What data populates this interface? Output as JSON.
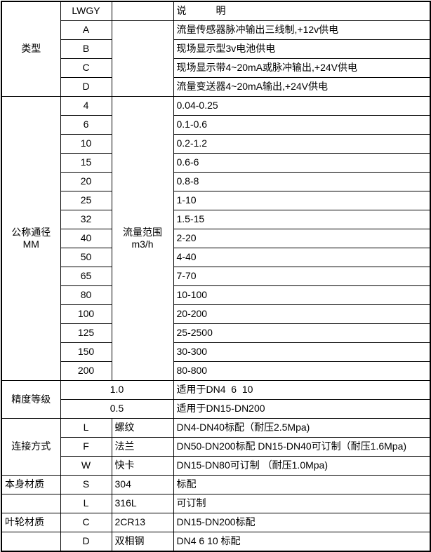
{
  "table": {
    "header": {
      "code": "LWGY",
      "desc": "说　　　明"
    },
    "sections": {
      "type": {
        "label": "类型",
        "rows": [
          {
            "code": "A",
            "desc": "流量传感器脉冲输出三线制,+12v供电"
          },
          {
            "code": "B",
            "desc": "现场显示型3v电池供电"
          },
          {
            "code": "C",
            "desc": "现场显示带4~20mA或脉冲输出,+24V供电"
          },
          {
            "code": "D",
            "desc": "流量变送器4~20mA输出,+24V供电"
          }
        ]
      },
      "diameter": {
        "label": "公称通径\nMM",
        "range_label": "流量范围\nm3/h",
        "rows": [
          {
            "dn": "4",
            "range": "0.04-0.25"
          },
          {
            "dn": "6",
            "range": "0.1-0.6"
          },
          {
            "dn": "10",
            "range": "0.2-1.2"
          },
          {
            "dn": "15",
            "range": "0.6-6"
          },
          {
            "dn": "20",
            "range": "0.8-8"
          },
          {
            "dn": "25",
            "range": "1-10"
          },
          {
            "dn": "32",
            "range": "1.5-15"
          },
          {
            "dn": "40",
            "range": "2-20"
          },
          {
            "dn": "50",
            "range": "4-40"
          },
          {
            "dn": "65",
            "range": "7-70"
          },
          {
            "dn": "80",
            "range": "10-100"
          },
          {
            "dn": "100",
            "range": "20-200"
          },
          {
            "dn": "125",
            "range": "25-2500"
          },
          {
            "dn": "150",
            "range": "30-300"
          },
          {
            "dn": "200",
            "range": "80-800"
          }
        ]
      },
      "accuracy": {
        "label": "精度等级",
        "rows": [
          {
            "grade": "1.0",
            "desc": "适用于DN4  6  10"
          },
          {
            "grade": "0.5",
            "desc": "适用于DN15-DN200"
          }
        ]
      },
      "connection": {
        "label": "连接方式",
        "rows": [
          {
            "code": "L",
            "name": "螺纹",
            "desc": "DN4-DN40标配（耐压2.5Mpa)"
          },
          {
            "code": "F",
            "name": "法兰",
            "desc": "DN50-DN200标配 DN15-DN40可订制（耐压1.6Mpa)"
          },
          {
            "code": "W",
            "name": "快卡",
            "desc": "DN15-DN80可订制 （耐压1.0Mpa)"
          }
        ]
      },
      "body_material": {
        "label": "本身材质",
        "rows": [
          {
            "code": "S",
            "name": "304",
            "desc": "标配"
          },
          {
            "code": "L",
            "name": "316L",
            "desc": "可订制"
          }
        ]
      },
      "impeller_material": {
        "label": "叶轮材质",
        "rows": [
          {
            "code": "C",
            "name": "2CR13",
            "desc": "DN15-DN200标配"
          },
          {
            "code": "D",
            "name": "双相钢",
            "desc": "DN4 6 10 标配"
          }
        ]
      }
    }
  }
}
